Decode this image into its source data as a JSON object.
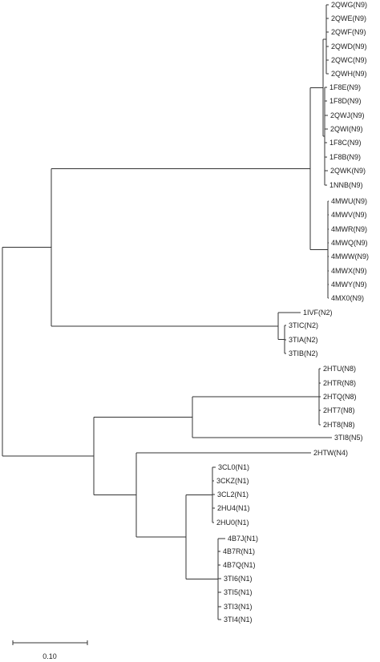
{
  "figure": {
    "type": "phylogenetic-tree",
    "line_color": "#333333",
    "label_color": "#222222",
    "leaf_labels": [
      "2QWG(N9)",
      "2QWE(N9)",
      "2QWF(N9)",
      "2QWD(N9)",
      "2QWC(N9)",
      "2QWH(N9)",
      "1F8E(N9)",
      "1F8D(N9)",
      "2QWJ(N9)",
      "2QWI(N9)",
      "1F8C(N9)",
      "1F8B(N9)",
      "2QWK(N9)",
      "1NNB(N9)",
      "4MWU(N9)",
      "4MWV(N9)",
      "4MWR(N9)",
      "4MWQ(N9)",
      "4MWW(N9)",
      "4MWX(N9)",
      "4MWY(N9)",
      "4MX0(N9)",
      "1IVF(N2)",
      "3TIC(N2)",
      "3TIA(N2)",
      "3TIB(N2)",
      "2HTU(N8)",
      "2HTR(N8)",
      "2HTQ(N8)",
      "2HT7(N8)",
      "2HT8(N8)",
      "3TI8(N5)",
      "2HTW(N4)",
      "3CL0(N1)",
      "3CKZ(N1)",
      "3CL2(N1)",
      "2HU4(N1)",
      "2HU0(N1)",
      "4B7J(N1)",
      "4B7R(N1)",
      "4B7Q(N1)",
      "3TI6(N1)",
      "3TI5(N1)",
      "3TI3(N1)",
      "3TI4(N1)"
    ],
    "scale_bar": {
      "label": "0.10",
      "length": 0.1
    }
  }
}
